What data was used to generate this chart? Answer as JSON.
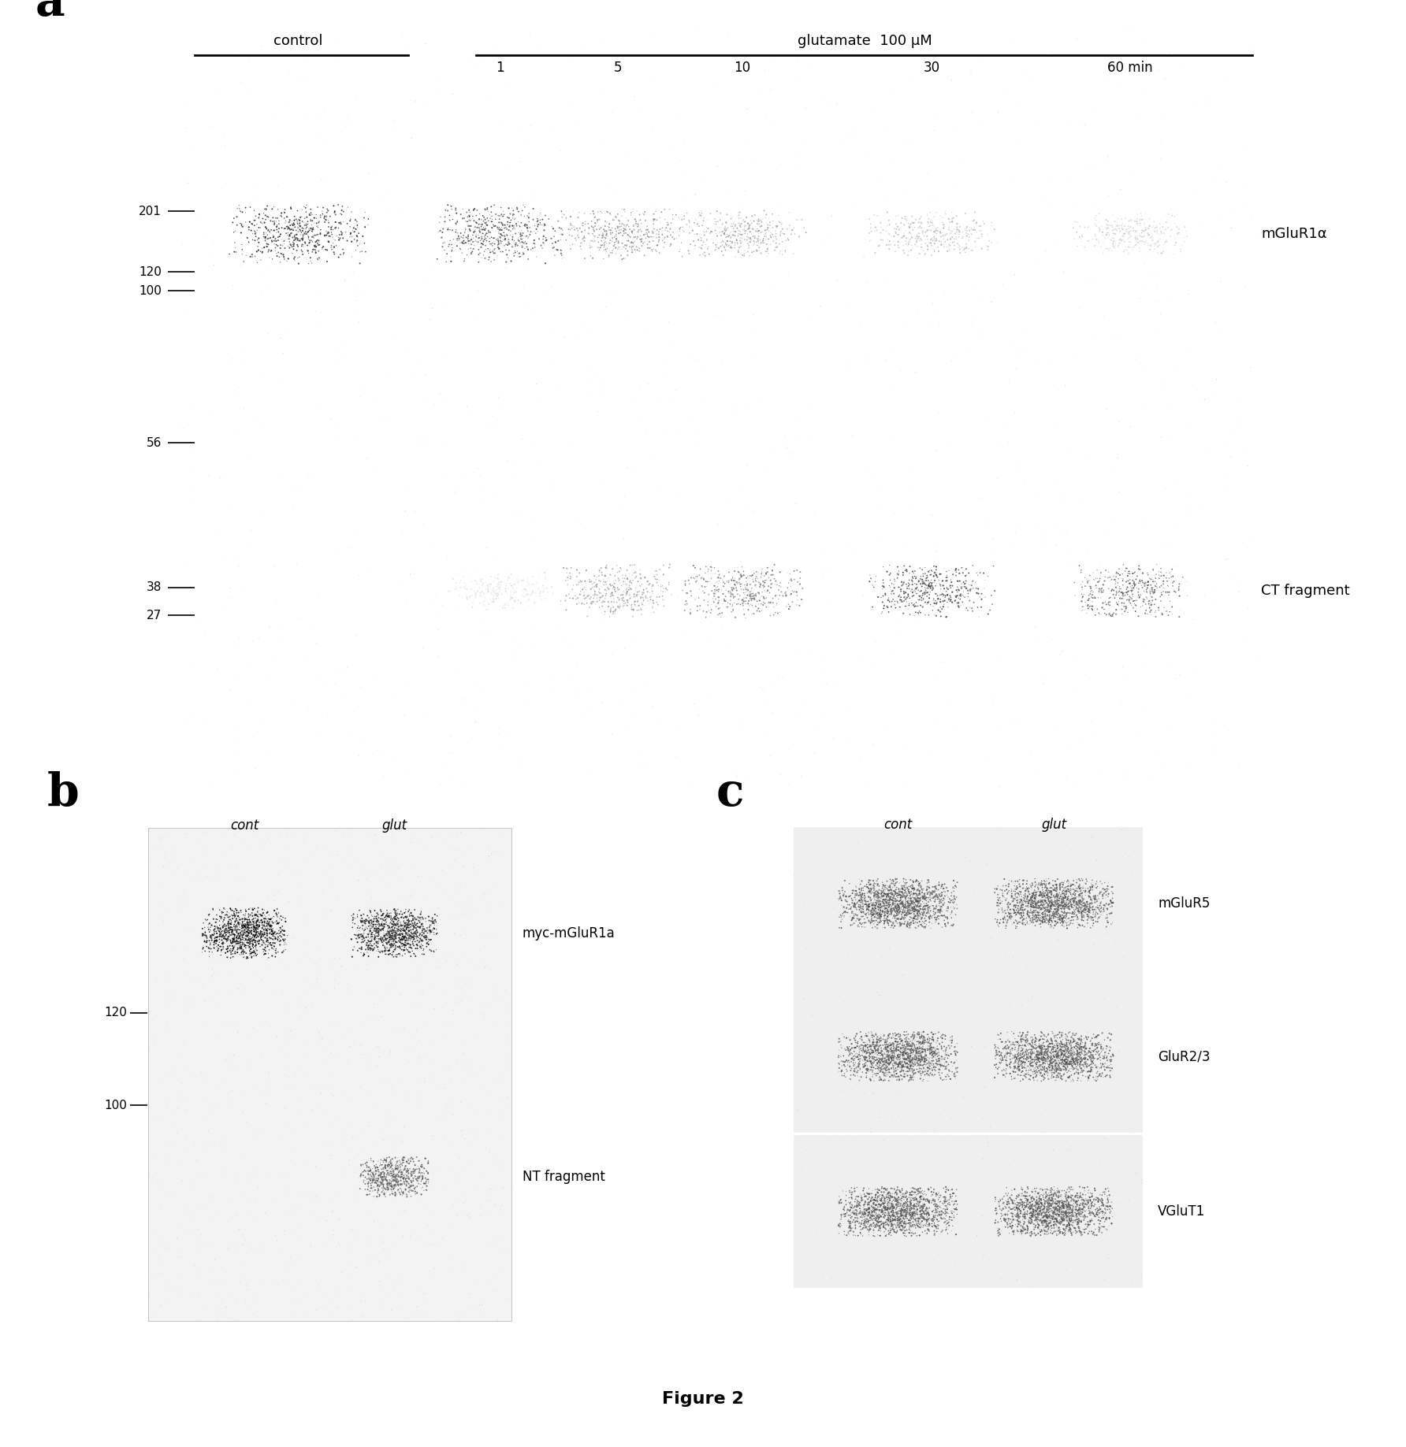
{
  "fig_width": 17.84,
  "fig_height": 18.37,
  "bg_color": "#ffffff",
  "panel_a": {
    "label": "a",
    "header_control": "control",
    "header_glutamate": "glutamate  100 μM",
    "time_labels": [
      "1",
      "5",
      "10",
      "30",
      "60 min"
    ],
    "mw_top": [
      [
        "201",
        0.76
      ],
      [
        "120",
        0.68
      ],
      [
        "100",
        0.655
      ]
    ],
    "mw_bot": [
      [
        "56",
        0.455
      ],
      [
        "38",
        0.265
      ],
      [
        "27",
        0.228
      ]
    ],
    "band_mGluR1a_label": "mGluR1α",
    "band_CT_label": "CT fragment"
  },
  "panel_b": {
    "label": "b",
    "header_labels": [
      "cont",
      "glut"
    ],
    "mw_markers": [
      [
        "120",
        0.62
      ],
      [
        "100",
        0.44
      ]
    ],
    "band1_label": "myc-mGluR1a",
    "band2_label": "NT fragment"
  },
  "panel_c": {
    "label": "c",
    "header_labels": [
      "cont",
      "glut"
    ],
    "row_labels": [
      "mGluR5",
      "GluR2/3",
      "VGluT1"
    ]
  },
  "figure_caption": "Figure 2"
}
